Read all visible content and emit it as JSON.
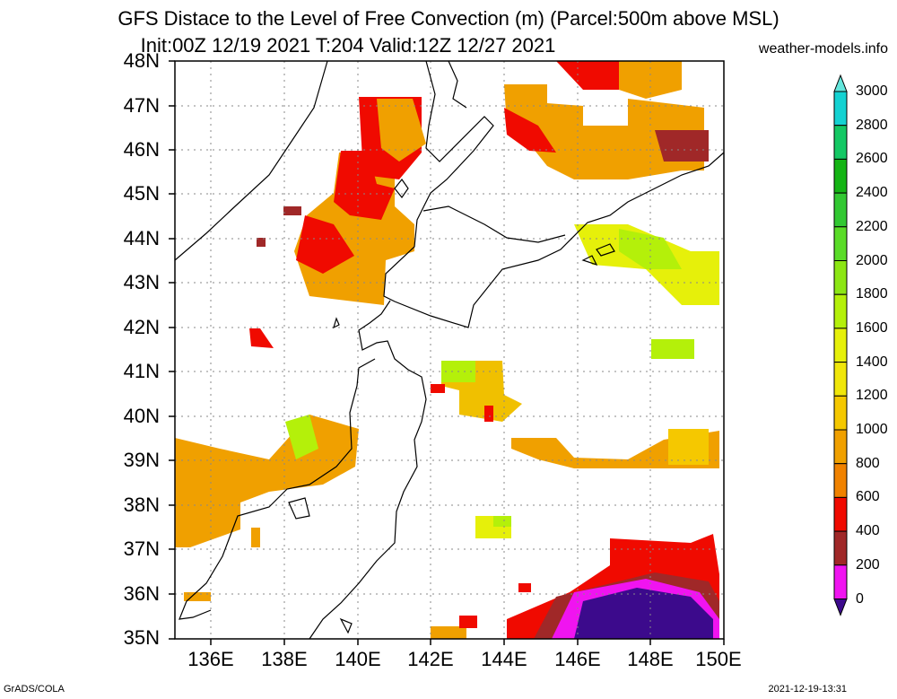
{
  "title": {
    "line1": "GFS Distace to the Level of Free Convection (m) (Parcel:500m above MSL)",
    "line2": "Init:00Z 12/19 2021 T:204 Valid:12Z 12/27 2021"
  },
  "credit": "weather-models.info",
  "footer": {
    "left": "GrADS/COLA",
    "right": "2021-12-19-13:31"
  },
  "map": {
    "lat_labels": [
      "48N",
      "47N",
      "46N",
      "45N",
      "44N",
      "43N",
      "42N",
      "41N",
      "40N",
      "39N",
      "38N",
      "37N",
      "36N",
      "35N"
    ],
    "lon_labels": [
      "136E",
      "138E",
      "140E",
      "142E",
      "144E",
      "146E",
      "148E",
      "150E"
    ],
    "lat_range": [
      35,
      48
    ],
    "lon_range": [
      135,
      150
    ]
  },
  "colorbar": {
    "labels": [
      "3000",
      "2800",
      "2600",
      "2400",
      "2200",
      "2000",
      "1800",
      "1600",
      "1400",
      "1200",
      "1000",
      "800",
      "600",
      "400",
      "200",
      "0"
    ],
    "colors": [
      "#14d2d2",
      "#14c864",
      "#14b414",
      "#32c832",
      "#5adc28",
      "#8ce614",
      "#b4f00a",
      "#e6f00a",
      "#f0e60a",
      "#f5c800",
      "#f0a000",
      "#f08200",
      "#f00a00",
      "#a02828",
      "#f014f0",
      "#3c0a8c"
    ],
    "top_color": "#64e6dc",
    "bottom_color": "#3c0a8c"
  }
}
